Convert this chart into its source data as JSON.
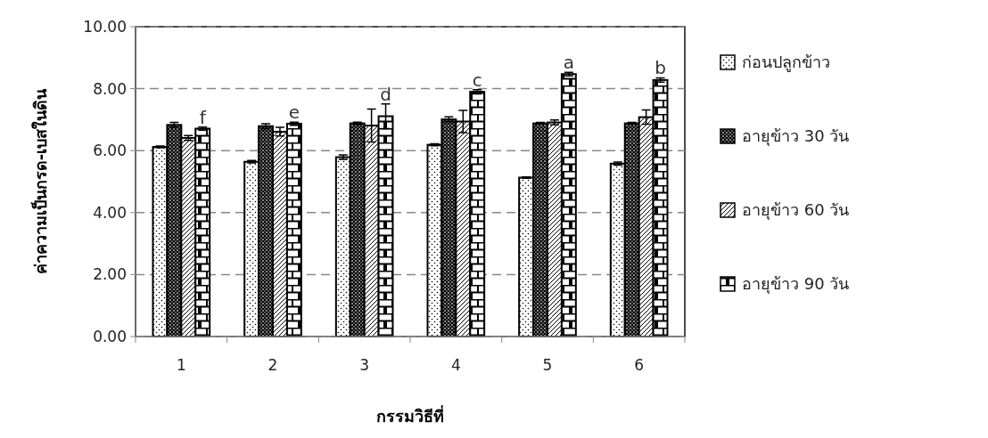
{
  "chart_data": {
    "type": "bar",
    "xlabel": "กรรมวิธีที่",
    "ylabel": "ค่าความเป็นกรด-เบสในดิน",
    "categories": [
      "1",
      "2",
      "3",
      "4",
      "5",
      "6"
    ],
    "series": [
      {
        "name": "ก่อนปลูกข้าว",
        "color": "#000000",
        "values": [
          6.12,
          5.64,
          5.79,
          6.19,
          5.13,
          5.58
        ],
        "errors": [
          0.03,
          0.04,
          0.07,
          0.03,
          0.02,
          0.05
        ]
      },
      {
        "name": "อายุข้าว 30 วัน",
        "color": "#000000",
        "values": [
          6.83,
          6.79,
          6.88,
          7.01,
          6.88,
          6.88
        ],
        "errors": [
          0.08,
          0.08,
          0.04,
          0.08,
          0.03,
          0.03
        ]
      },
      {
        "name": "อายุข้าว 60 วัน",
        "color": "#000000",
        "values": [
          6.41,
          6.61,
          6.81,
          6.94,
          6.91,
          7.08
        ],
        "errors": [
          0.08,
          0.14,
          0.53,
          0.36,
          0.08,
          0.23
        ]
      },
      {
        "name": "อายุข้าว 90 วัน",
        "color": "#000000",
        "values": [
          6.71,
          6.87,
          7.11,
          7.9,
          8.47,
          8.28
        ],
        "errors": [
          0.05,
          0.05,
          0.4,
          0.07,
          0.06,
          0.07
        ]
      }
    ],
    "annotations": [
      "f",
      "e",
      "d",
      "c",
      "a",
      "b"
    ],
    "ylim": [
      0,
      10
    ],
    "yticks": [
      {
        "value": 0,
        "label": "0.00"
      },
      {
        "value": 2,
        "label": "2.00"
      },
      {
        "value": 4,
        "label": "4.00"
      },
      {
        "value": 6,
        "label": "6.00"
      },
      {
        "value": 8,
        "label": "8.00"
      },
      {
        "value": 10,
        "label": "10.00"
      }
    ],
    "grid": "y",
    "line_style": "dashed",
    "legend": "right"
  }
}
